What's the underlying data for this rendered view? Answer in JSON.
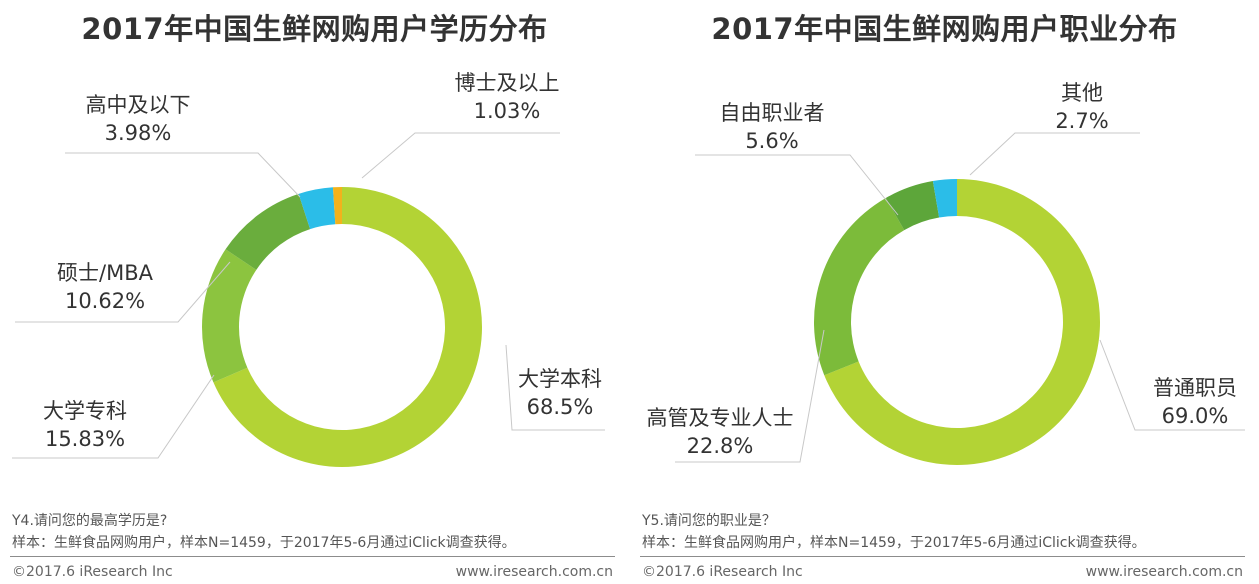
{
  "chart_data": [
    {
      "type": "pie",
      "title": "2017年中国生鲜网购用户学历分布",
      "labels": [
        "大学本科",
        "大学专科",
        "硕士/MBA",
        "高中及以下",
        "博士及以上"
      ],
      "values_text": [
        "68.5%",
        "15.83%",
        "10.62%",
        "3.98%",
        "1.03%"
      ],
      "values": [
        68.5,
        15.83,
        10.62,
        3.98,
        1.03
      ],
      "colors": [
        "#b3d335",
        "#8cc43f",
        "#6aad3d",
        "#2bbde8",
        "#f2b21c"
      ],
      "question": "Y4.请问您的最高学历是?",
      "sample": "样本：生鲜食品网购用户，样本N=1459，于2017年5-6月通过iClick调查获得。",
      "copyright": "©2017.6 iResearch Inc",
      "website": "www.iresearch.com.cn"
    },
    {
      "type": "pie",
      "title": "2017年中国生鲜网购用户职业分布",
      "labels": [
        "普通职员",
        "高管及专业人士",
        "自由职业者",
        "其他"
      ],
      "values_text": [
        "69.0%",
        "22.8%",
        "5.6%",
        "2.7%"
      ],
      "values": [
        69.0,
        22.8,
        5.6,
        2.7
      ],
      "colors": [
        "#b3d335",
        "#7cbb3a",
        "#5da63a",
        "#2bbde8"
      ],
      "question": "Y5.请问您的职业是？",
      "sample": "样本：生鲜食品网购用户，样本N=1459，于2017年5-6月通过iClick调查获得。",
      "copyright": "©2017.6 iResearch Inc",
      "website": "www.iresearch.com.cn"
    }
  ]
}
